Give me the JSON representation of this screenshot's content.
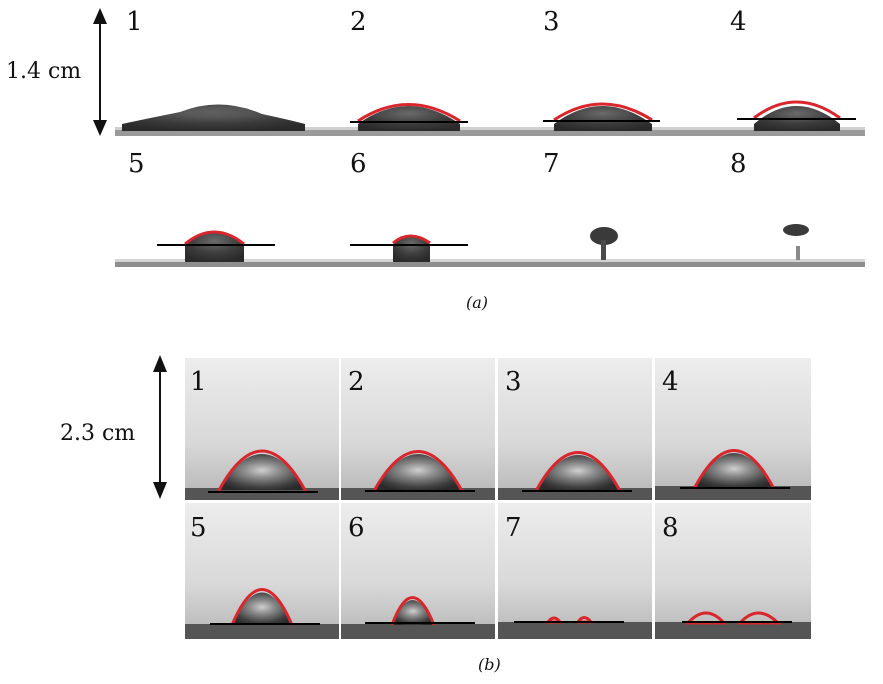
{
  "panel_a": {
    "scale_label": "1.4 cm",
    "caption": "(a)",
    "frames": [
      "1",
      "2",
      "3",
      "4",
      "5",
      "6",
      "7",
      "8"
    ]
  },
  "panel_b": {
    "scale_label": "2.3 cm",
    "caption": "(b)",
    "frames": [
      "1",
      "2",
      "3",
      "4",
      "5",
      "6",
      "7",
      "8"
    ]
  },
  "colors": {
    "fit_contour": "#d9262c",
    "baseline": "#000000"
  }
}
